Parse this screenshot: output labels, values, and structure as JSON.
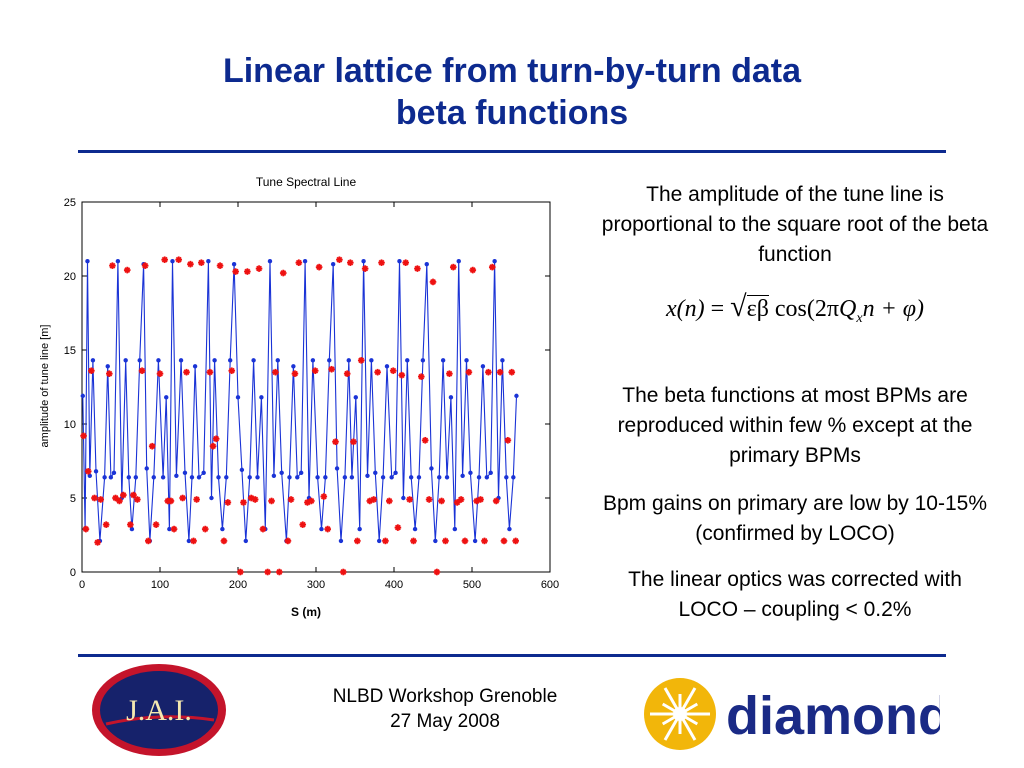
{
  "slide": {
    "title_line1": "Linear lattice from turn-by-turn data",
    "title_line2": "beta functions",
    "para1": "The amplitude of the tune line is proportional to the square root of the beta function",
    "para2": "The beta functions at most BPMs are reproduced within few % except at the primary BPMs",
    "para3": "Bpm gains on primary are low by 10-15% (confirmed by LOCO)",
    "para4": "The linear optics was corrected with LOCO – coupling < 0.2%",
    "footer_line1": "NLBD Workshop Grenoble",
    "footer_line2": "27 May 2008",
    "logo_left_text": "J.A.I.",
    "logo_right_text": "diamond"
  },
  "formula": {
    "lhs": "x(n)",
    "equals": "=",
    "sqrt_arg": "εβ",
    "cos_part": "cos(2π",
    "Q": "Q",
    "subscript": "x",
    "tail": "n + φ)"
  },
  "colors": {
    "title": "#0d2a8f",
    "series_blue": "#1a33d6",
    "series_red": "#ee1111",
    "jai_ring": "#c4142b",
    "jai_inner": "#16226b",
    "diamond_text": "#1a2a86",
    "diamond_star": "#f2b60a"
  },
  "chart_data": {
    "type": "line",
    "title": "Tune Spectral Line",
    "xlabel": "S (m)",
    "ylabel": "amplitude of tune line [m]",
    "xlim": [
      0,
      600
    ],
    "ylim": [
      0,
      25
    ],
    "xticks": [
      "0",
      "100",
      "200",
      "300",
      "400",
      "500",
      "600"
    ],
    "yticks": [
      "0",
      "5",
      "10",
      "15",
      "20",
      "25"
    ],
    "grid": false,
    "series": [
      {
        "name": "",
        "marker": "dot",
        "x": [
          1,
          4,
          7,
          10,
          14,
          18,
          23,
          29,
          33,
          37,
          41,
          46,
          51,
          56,
          60,
          64,
          69,
          74,
          79,
          83,
          87,
          92,
          98,
          104,
          108,
          112,
          116,
          121,
          127,
          132,
          137,
          141,
          145,
          150,
          156,
          162,
          166,
          170,
          175,
          180,
          185,
          190,
          195,
          200,
          205,
          210,
          215,
          220,
          225,
          230,
          235,
          241,
          246,
          251,
          256,
          262,
          266,
          271,
          276,
          281,
          286,
          291,
          296,
          302,
          307,
          312,
          317,
          322,
          327,
          332,
          337,
          342,
          346,
          351,
          356,
          361,
          366,
          371,
          376,
          381,
          386,
          391,
          397,
          402,
          407,
          412,
          417,
          422,
          427,
          432,
          437,
          442,
          448,
          453,
          458,
          463,
          468,
          473,
          478,
          483,
          488,
          493,
          498,
          504,
          509,
          514,
          519,
          524,
          529,
          534,
          539,
          544,
          548,
          553,
          557
        ],
        "y": [
          11.9,
          2.9,
          21,
          6.5,
          14.3,
          6.8,
          2.1,
          6.4,
          13.9,
          6.4,
          6.7,
          21,
          5,
          14.3,
          6.4,
          2.9,
          6.4,
          14.3,
          20.8,
          7,
          2.1,
          6.4,
          14.3,
          6.4,
          11.8,
          2.9,
          21,
          6.5,
          14.3,
          6.7,
          2.1,
          6.4,
          13.9,
          6.4,
          6.7,
          21,
          5,
          14.3,
          6.4,
          2.9,
          6.4,
          14.3,
          20.8,
          11.8,
          6.9,
          2.1,
          6.4,
          14.3,
          6.4,
          11.8,
          2.9,
          21,
          6.5,
          14.3,
          6.7,
          2.1,
          6.4,
          13.9,
          6.4,
          6.7,
          21,
          5,
          14.3,
          6.4,
          2.9,
          6.4,
          14.3,
          20.8,
          7,
          2.1,
          6.4,
          14.3,
          6.4,
          11.8,
          2.9,
          21,
          6.5,
          14.3,
          6.7,
          2.1,
          6.4,
          13.9,
          6.4,
          6.7,
          21,
          5,
          14.3,
          6.4,
          2.9,
          6.4,
          14.3,
          20.8,
          7,
          2.1,
          6.4,
          14.3,
          6.4,
          11.8,
          2.9,
          21,
          6.5,
          14.3,
          6.7,
          2.1,
          6.4,
          13.9,
          6.4,
          6.7,
          21,
          5,
          14.3,
          6.4,
          2.9,
          6.4,
          11.9
        ]
      },
      {
        "name": "",
        "marker": "star",
        "x": [
          2,
          5,
          8,
          12,
          16,
          20,
          24,
          31,
          35,
          39,
          43,
          48,
          53,
          58,
          62,
          66,
          71,
          77,
          81,
          85,
          90,
          95,
          100,
          106,
          110,
          114,
          118,
          124,
          129,
          134,
          139,
          143,
          147,
          153,
          158,
          164,
          168,
          172,
          177,
          182,
          187,
          192,
          197,
          203,
          207,
          212,
          217,
          222,
          227,
          232,
          238,
          243,
          248,
          253,
          258,
          264,
          268,
          273,
          278,
          283,
          289,
          294,
          299,
          304,
          310,
          315,
          320,
          325,
          330,
          335,
          340,
          344,
          348,
          353,
          358,
          363,
          369,
          374,
          379,
          384,
          389,
          394,
          399,
          405,
          410,
          415,
          420,
          425,
          430,
          435,
          440,
          445,
          450,
          455,
          461,
          466,
          471,
          476,
          481,
          486,
          491,
          496,
          501,
          506,
          511,
          516,
          521,
          526,
          531,
          536,
          541,
          546,
          551,
          556
        ],
        "y": [
          9.2,
          2.9,
          6.8,
          13.6,
          5,
          2,
          4.9,
          3.2,
          13.4,
          20.7,
          5,
          4.8,
          5.2,
          20.4,
          3.2,
          5.2,
          4.9,
          13.6,
          20.7,
          2.1,
          8.5,
          3.2,
          13.4,
          21.1,
          4.8,
          4.8,
          2.9,
          21.1,
          5,
          13.5,
          20.8,
          2.1,
          4.9,
          20.9,
          2.9,
          13.5,
          8.5,
          9,
          20.7,
          2.1,
          4.7,
          13.6,
          20.3,
          0,
          4.7,
          20.3,
          5,
          4.9,
          20.5,
          2.9,
          0,
          4.8,
          13.5,
          0,
          20.2,
          2.1,
          4.9,
          13.4,
          20.9,
          3.2,
          4.7,
          4.8,
          13.6,
          20.6,
          5.1,
          2.9,
          13.7,
          8.8,
          21.1,
          0,
          13.4,
          20.9,
          8.8,
          2.1,
          14.3,
          20.5,
          4.8,
          4.9,
          13.5,
          20.9,
          2.1,
          4.8,
          13.6,
          3,
          13.3,
          20.9,
          4.9,
          2.1,
          20.5,
          13.2,
          8.9,
          4.9,
          19.6,
          0,
          4.8,
          2.1,
          13.4,
          20.6,
          4.7,
          4.9,
          2.1,
          13.5,
          20.4,
          4.8,
          4.9,
          2.1,
          13.5,
          20.6,
          4.8,
          13.5,
          2.1,
          8.9,
          13.5,
          2.1
        ]
      }
    ]
  }
}
